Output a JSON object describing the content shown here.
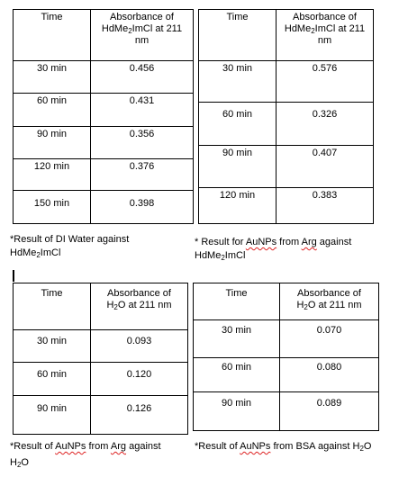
{
  "table1": {
    "header_time": "Time",
    "header_abs_prefix": "Absorbance of HdMe",
    "header_abs_suffix": "ImCl at 211 nm",
    "rows": [
      {
        "time": "30 min",
        "value": "0.456"
      },
      {
        "time": "60 min",
        "value": "0.431"
      },
      {
        "time": "90 min",
        "value": "0.356"
      },
      {
        "time": "120 min",
        "value": "0.376"
      },
      {
        "time": "150 min",
        "value": "0.398"
      }
    ]
  },
  "table2": {
    "header_time": "Time",
    "header_abs_prefix": "Absorbance of HdMe",
    "header_abs_suffix": "ImCl at 211 nm",
    "rows": [
      {
        "time": "30 min",
        "value": "0.576"
      },
      {
        "time": "60 min",
        "value": "0.326"
      },
      {
        "time": "90 min",
        "value": "0.407"
      },
      {
        "time": "120 min",
        "value": "0.383"
      }
    ]
  },
  "table3": {
    "header_time": "Time",
    "header_abs_prefix": "Absorbance of H",
    "header_abs_suffix": "O at 211 nm",
    "rows": [
      {
        "time": "30 min",
        "value": "0.093"
      },
      {
        "time": "60 min",
        "value": "0.120"
      },
      {
        "time": "90 min",
        "value": "0.126"
      }
    ]
  },
  "table4": {
    "header_time": "Time",
    "header_abs_prefix": "Absorbance of H",
    "header_abs_suffix": "O at 211 nm",
    "rows": [
      {
        "time": "30 min",
        "value": "0.070"
      },
      {
        "time": "60 min",
        "value": "0.080"
      },
      {
        "time": "90 min",
        "value": "0.089"
      }
    ]
  },
  "subscript_2": "2",
  "captions": {
    "c1_line1": "*Result of DI Water against",
    "c1_line2_prefix": "HdMe",
    "c1_line2_suffix": "ImCl",
    "c2_line1_prefix": "* Result for ",
    "c2_line1_word": "AuNPs",
    "c2_line1_mid": " from ",
    "c2_line1_word2": "Arg",
    "c2_line1_suffix": " against",
    "c2_line2_prefix": "HdMe",
    "c2_line2_suffix": "ImCl",
    "c3_line1_prefix": "*Result of ",
    "c3_line1_word": "AuNPs",
    "c3_line1_mid": " from ",
    "c3_line1_word2": "Arg",
    "c3_line1_suffix": " against",
    "c3_line2_prefix": "H",
    "c3_line2_suffix": "O",
    "c4_prefix": "*Result of ",
    "c4_word": "AuNPs",
    "c4_mid": " from BSA against H",
    "c4_suffix": "O"
  }
}
